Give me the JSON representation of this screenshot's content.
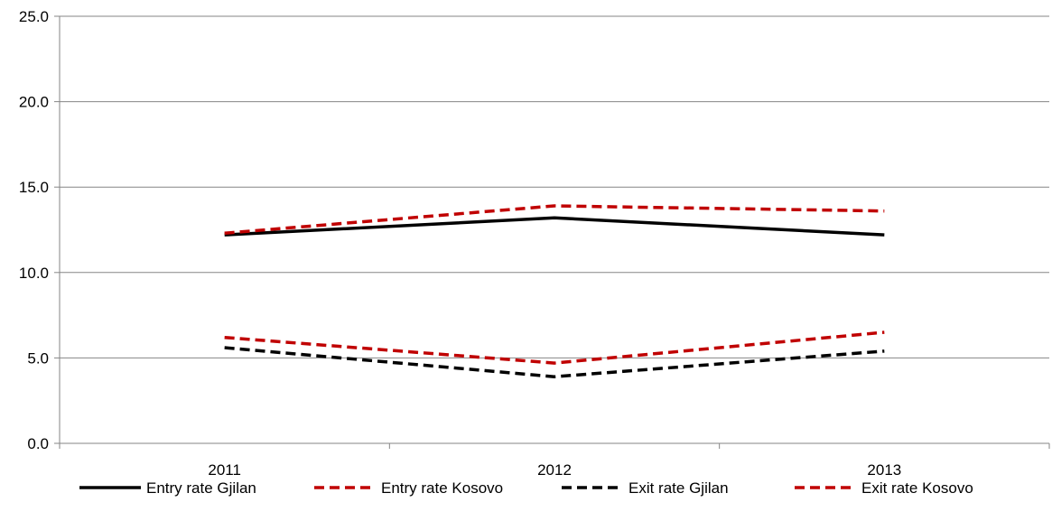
{
  "chart_data": {
    "type": "line",
    "title": "",
    "xlabel": "",
    "ylabel": "",
    "categories": [
      "2011",
      "2012",
      "2013"
    ],
    "ylim": [
      0,
      25
    ],
    "yticks": [
      "0.0",
      "5.0",
      "10.0",
      "15.0",
      "20.0",
      "25.0"
    ],
    "grid": "horizontal",
    "legend_position": "bottom",
    "series": [
      {
        "name": "Entry rate Gjilan",
        "values": [
          12.2,
          13.2,
          12.2
        ],
        "color": "#000000",
        "dash": "solid"
      },
      {
        "name": "Entry rate Kosovo",
        "values": [
          12.3,
          13.9,
          13.6
        ],
        "color": "#c00000",
        "dash": "dashed"
      },
      {
        "name": "Exit rate Gjilan",
        "values": [
          5.6,
          3.9,
          5.4
        ],
        "color": "#000000",
        "dash": "dashed"
      },
      {
        "name": "Exit rate Kosovo",
        "values": [
          6.2,
          4.7,
          6.5
        ],
        "color": "#c00000",
        "dash": "dashed"
      }
    ]
  }
}
